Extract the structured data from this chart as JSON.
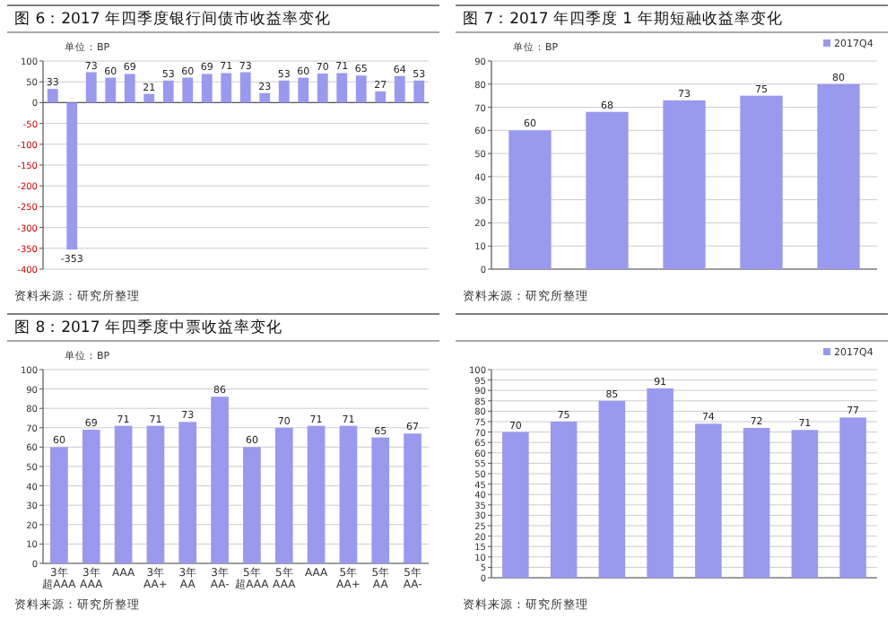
{
  "chart_data": [
    {
      "type": "bar",
      "title": "图 6：2017 年四季度银行间债市收益率变化",
      "categories": [
        null,
        null,
        null,
        null,
        null,
        null,
        null,
        null,
        null,
        null,
        null,
        null,
        null,
        null,
        null,
        null,
        null,
        null,
        null,
        null
      ],
      "series": [
        {
          "color": "#9999ee",
          "values": [
            33,
            -353,
            73,
            60,
            69,
            21,
            53,
            60,
            69,
            71,
            73,
            23,
            53,
            60,
            70,
            71,
            65,
            27,
            64,
            53
          ]
        }
      ],
      "ylim": [
        -400,
        100
      ],
      "yticks": [
        100,
        50,
        0,
        -50,
        -100,
        -150,
        -200,
        -250,
        -300,
        -350,
        -400
      ],
      "grid": "y",
      "data_labels": true,
      "legend": false,
      "annotations": [
        "单位：BP",
        "资料来源：研究所整理"
      ]
    },
    {
      "type": "bar",
      "title": "图 7：2017 年四季度 1 年期短融收益率变化",
      "categories": [
        null,
        null,
        null,
        null,
        null
      ],
      "series": [
        {
          "name": "2017Q4",
          "color": "#9999ee",
          "values": [
            60,
            68,
            73,
            75,
            80
          ]
        }
      ],
      "ylim": [
        0,
        90
      ],
      "yticks": [
        0,
        10,
        20,
        30,
        40,
        50,
        60,
        70,
        80,
        90
      ],
      "grid": "y",
      "data_labels": true,
      "legend": "top right",
      "annotations": [
        "单位：BP",
        "资料来源：研究所整理"
      ]
    },
    {
      "type": "bar",
      "title": "图 8：2017 年四季度中票收益率变化",
      "categories": [
        "3年超AAA",
        "3年AAA",
        "AAA",
        "3年AA+",
        "3年AA",
        "3年AA-",
        "5年超AAA",
        "5年AAA",
        "AAA",
        "5年AA+",
        "5年AA",
        "5年AA-"
      ],
      "series": [
        {
          "color": "#9999ee",
          "values": [
            60,
            69,
            71,
            71,
            73,
            86,
            60,
            70,
            71,
            71,
            65,
            67
          ]
        }
      ],
      "ylim": [
        0,
        100
      ],
      "yticks": [
        0,
        10,
        20,
        30,
        40,
        50,
        60,
        70,
        80,
        90,
        100
      ],
      "grid": "y",
      "data_labels": true,
      "legend": false,
      "annotations": [
        "单位：BP",
        "资料来源：研究所整理"
      ]
    },
    {
      "type": "bar",
      "categories": [
        null,
        null,
        null,
        null,
        null,
        null,
        null,
        null
      ],
      "series": [
        {
          "name": "2017Q4",
          "color": "#9999ee",
          "values": [
            70,
            75,
            85,
            91,
            74,
            72,
            71,
            77
          ]
        }
      ],
      "ylim": [
        0,
        100
      ],
      "yticks": [
        0,
        5,
        10,
        15,
        20,
        25,
        30,
        35,
        40,
        45,
        50,
        55,
        60,
        65,
        70,
        75,
        80,
        85,
        90,
        95,
        100
      ],
      "grid": "y",
      "data_labels": true,
      "legend": "top right",
      "annotations": [
        "资料来源：研究所整理"
      ]
    }
  ]
}
